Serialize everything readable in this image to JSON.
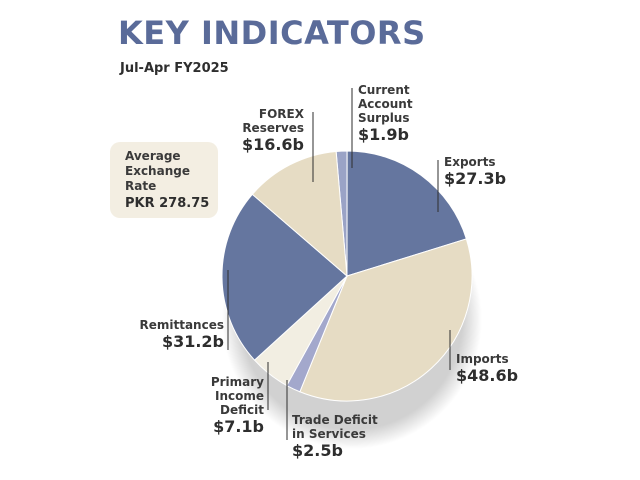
{
  "header": {
    "title": "KEY INDICATORS",
    "subtitle": "Jul-Apr FY2025"
  },
  "exchange_rate": {
    "label_lines": [
      "Average",
      "Exchange",
      "Rate"
    ],
    "value": "PKR 278.75"
  },
  "chart_data": {
    "type": "pie",
    "slices": [
      {
        "name": "Current Account Surplus",
        "label_lines": [
          "Current",
          "Account",
          "Surplus"
        ],
        "value": 1.9,
        "value_label": "$1.9b",
        "color": "#9aa3c6"
      },
      {
        "name": "Exports",
        "label_lines": [
          "Exports"
        ],
        "value": 27.3,
        "value_label": "$27.3b",
        "color": "#65769f"
      },
      {
        "name": "Imports",
        "label_lines": [
          "Imports"
        ],
        "value": 48.6,
        "value_label": "$48.6b",
        "color": "#e6dcc4"
      },
      {
        "name": "Trade Deficit in Services",
        "label_lines": [
          "Trade Deficit",
          "in Services"
        ],
        "value": 2.5,
        "value_label": "$2.5b",
        "color": "#a3a8cc"
      },
      {
        "name": "Primary Income Deficit",
        "label_lines": [
          "Primary",
          "Income",
          "Deficit"
        ],
        "value": 7.1,
        "value_label": "$7.1b",
        "color": "#f2eee2"
      },
      {
        "name": "Remittances",
        "label_lines": [
          "Remittances"
        ],
        "value": 31.2,
        "value_label": "$31.2b",
        "color": "#65769f"
      },
      {
        "name": "FOREX Reserves",
        "label_lines": [
          "FOREX",
          "Reserves"
        ],
        "value": 16.6,
        "value_label": "$16.6b",
        "color": "#e6dcc4"
      }
    ]
  }
}
